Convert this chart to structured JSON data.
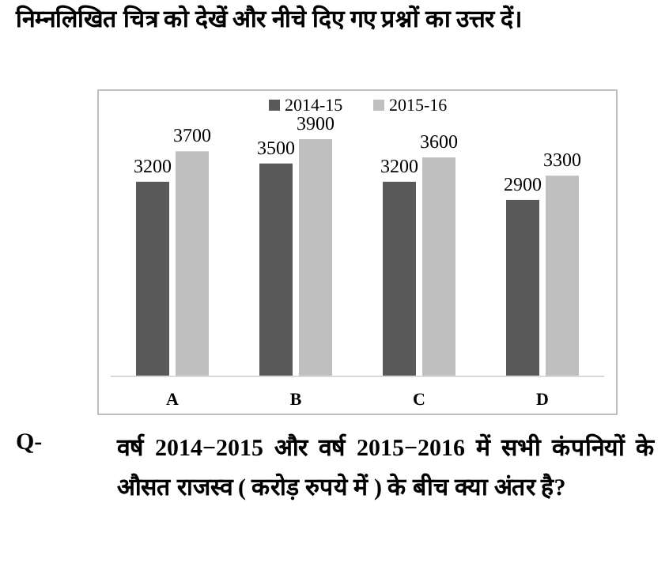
{
  "chart_data": {
    "type": "bar",
    "title": "निम्नलिखित चित्र को देखें और नीचे दिए गए प्रश्नों का उत्तर दें।",
    "categories": [
      "A",
      "B",
      "C",
      "D"
    ],
    "series": [
      {
        "name": "2014-15",
        "color": "#595959",
        "values": [
          3200,
          3500,
          3200,
          2900
        ]
      },
      {
        "name": "2015-16",
        "color": "#bfbfbf",
        "values": [
          3700,
          3900,
          3600,
          3300
        ]
      }
    ],
    "data_labels": true,
    "legend": "top",
    "annotations": [
      "Q-",
      "वर्ष 2014−2015 और वर्ष 2015−2016 में सभी कंपनियों के औसत राजस्व ( करोड़ रुपये में ) के बीच क्या अंतर है?"
    ]
  }
}
